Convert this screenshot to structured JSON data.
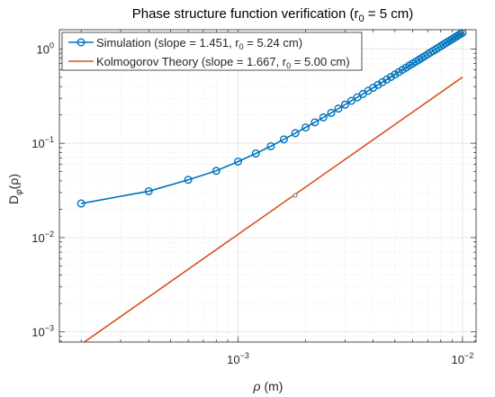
{
  "chart_data": {
    "type": "line",
    "title": {
      "main": "Phase structure function verification (r",
      "sub": "0",
      "tail": " = 5 cm)"
    },
    "xlabel": {
      "symbol": "ρ",
      "unit": " (m)"
    },
    "ylabel": {
      "main": "D",
      "sub": "φ",
      "tail": "(ρ)"
    },
    "xscale": "log",
    "yscale": "log",
    "xlim": [
      0.00016,
      0.0115
    ],
    "ylim": [
      0.00078,
      1.6
    ],
    "grid": true,
    "legend_position": "top-left",
    "x_ticks": [
      {
        "value": 0.001,
        "base": "10",
        "exp": "−3"
      },
      {
        "value": 0.01,
        "base": "10",
        "exp": "−2"
      }
    ],
    "y_ticks": [
      {
        "value": 0.001,
        "base": "10",
        "exp": "−3"
      },
      {
        "value": 0.01,
        "base": "10",
        "exp": "−2"
      },
      {
        "value": 0.1,
        "base": "10",
        "exp": "−1"
      },
      {
        "value": 1,
        "base": "10",
        "exp": "0"
      }
    ],
    "series": [
      {
        "name": "Simulation (slope = 1.451, r",
        "name_sub": "0",
        "name_tail": " = 5.24 cm)",
        "color": "#0072BD",
        "marker": "circle",
        "x": [
          0.0002,
          0.0004,
          0.0006,
          0.0008,
          0.001,
          0.0012,
          0.0014,
          0.0016,
          0.0018,
          0.002,
          0.0022,
          0.0024,
          0.0026,
          0.0028,
          0.003,
          0.0032,
          0.0034,
          0.0036,
          0.0038,
          0.004,
          0.0042,
          0.0044,
          0.0046,
          0.0048,
          0.005,
          0.0052,
          0.0054,
          0.0056,
          0.0058,
          0.006,
          0.0062,
          0.0064,
          0.0066,
          0.0068,
          0.007,
          0.0072,
          0.0074,
          0.0076,
          0.0078,
          0.008,
          0.0082,
          0.0084,
          0.0086,
          0.0088,
          0.009,
          0.0092,
          0.0094,
          0.0096,
          0.0098,
          0.01
        ],
        "y": [
          0.023,
          0.031,
          0.041,
          0.051,
          0.064,
          0.078,
          0.093,
          0.11,
          0.128,
          0.147,
          0.167,
          0.188,
          0.21,
          0.233,
          0.257,
          0.282,
          0.307,
          0.333,
          0.36,
          0.388,
          0.416,
          0.445,
          0.475,
          0.505,
          0.536,
          0.568,
          0.6,
          0.633,
          0.667,
          0.701,
          0.735,
          0.77,
          0.806,
          0.842,
          0.879,
          0.916,
          0.954,
          0.992,
          1.031,
          1.07,
          1.11,
          1.15,
          1.19,
          1.231,
          1.273,
          1.315,
          1.357,
          1.4,
          1.443,
          1.487
        ]
      },
      {
        "name": "Kolmogorov Theory (slope = 1.667, r",
        "name_sub": "0",
        "name_tail": " = 5.00 cm)",
        "color": "#D95319",
        "marker": "none",
        "x": [
          0.0002,
          0.01
        ],
        "y": [
          0.00074,
          0.502
        ]
      }
    ],
    "annotations": [
      {
        "x": 0.0018,
        "y": 0.028,
        "marker": "dot",
        "color": "#555555"
      }
    ]
  }
}
